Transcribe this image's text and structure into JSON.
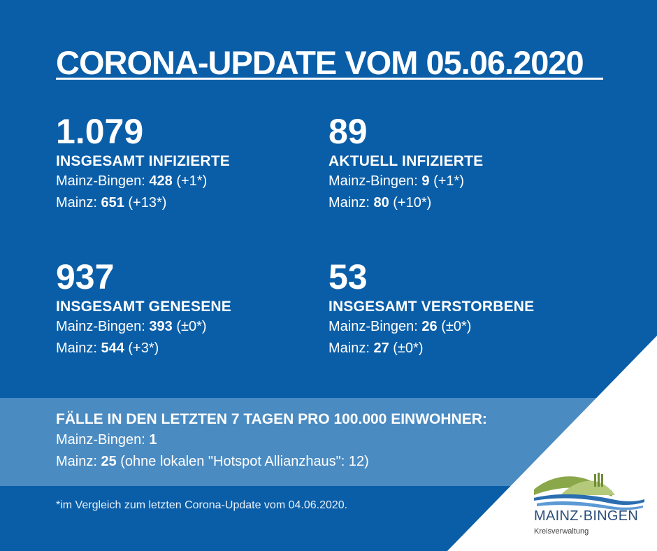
{
  "header": {
    "title": "CORONA-UPDATE VOM 05.06.2020"
  },
  "stats": [
    {
      "number": "1.079",
      "label": "INSGESAMT INFIZIERTE",
      "lines": [
        {
          "region": "Mainz-Bingen: ",
          "value": "428",
          "change": " (+1*)"
        },
        {
          "region": "Mainz: ",
          "value": "651",
          "change": " (+13*)"
        }
      ]
    },
    {
      "number": "89",
      "label": "AKTUELL INFIZIERTE",
      "lines": [
        {
          "region": "Mainz-Bingen: ",
          "value": "9",
          "change": " (+1*)"
        },
        {
          "region": "Mainz: ",
          "value": "80",
          "change": " (+10*)"
        }
      ]
    },
    {
      "number": "937",
      "label": "INSGESAMT GENESENE",
      "lines": [
        {
          "region": "Mainz-Bingen: ",
          "value": "393",
          "change": " (±0*)"
        },
        {
          "region": "Mainz: ",
          "value": "544",
          "change": " (+3*)"
        }
      ]
    },
    {
      "number": "53",
      "label": "INSGESAMT VERSTORBENE",
      "lines": [
        {
          "region": "Mainz-Bingen: ",
          "value": "26",
          "change": " (±0*)"
        },
        {
          "region": "Mainz: ",
          "value": "27",
          "change": " (±0*)"
        }
      ]
    }
  ],
  "incidence": {
    "title": "FÄLLE IN DEN LETZTEN 7 TAGEN PRO 100.000 EINWOHNER:",
    "lines": [
      {
        "region": "Mainz-Bingen: ",
        "value": "1",
        "note": ""
      },
      {
        "region": "Mainz: ",
        "value": "25",
        "note": " (ohne lokalen \"Hotspot Allianzhaus\": 12)"
      }
    ]
  },
  "footnote": "*im Vergleich zum letzten Corona-Update vom 04.06.2020.",
  "logo": {
    "name_left": "MAINZ",
    "separator": "·",
    "name_right": "BINGEN",
    "subtitle": "Kreisverwaltung",
    "icon": "landscape-logo-icon"
  },
  "colors": {
    "background": "#0a5ea8",
    "band": "#4a8bc2",
    "text": "#ffffff",
    "logo_text": "#2a4e7a"
  }
}
